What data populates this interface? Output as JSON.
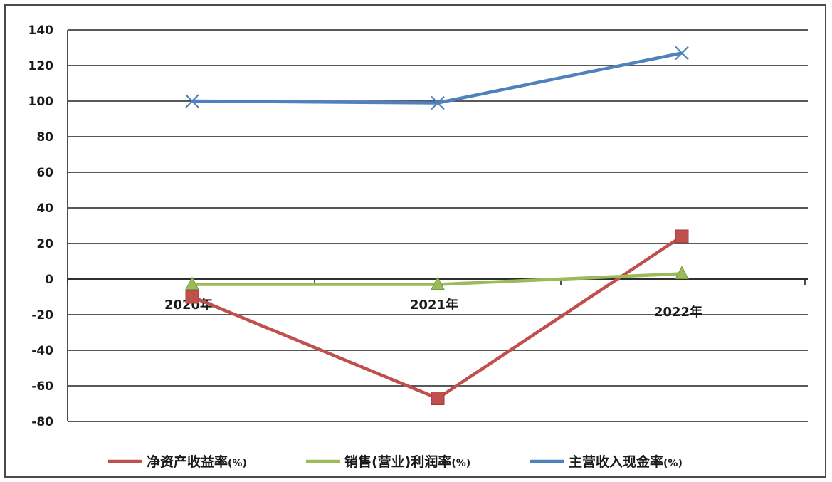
{
  "chart_data": {
    "type": "line",
    "title": "",
    "xlabel": "",
    "ylabel": "",
    "categories": [
      "2020年",
      "2021年",
      "2022年"
    ],
    "ylim": [
      -80,
      140
    ],
    "yticks": [
      140,
      120,
      100,
      80,
      60,
      40,
      20,
      0,
      -20,
      -40,
      -60,
      -80
    ],
    "grid": true,
    "legend_position": "bottom",
    "series": [
      {
        "name": "净资产收益率(%)",
        "values": [
          -10,
          -67,
          24
        ],
        "color": "#c0504d",
        "marker": "square"
      },
      {
        "name": "销售(营业)利润率(%)",
        "values": [
          -3,
          -3,
          3
        ],
        "color": "#9bbb59",
        "marker": "triangle"
      },
      {
        "name": "主营收入现金率(%)",
        "values": [
          100,
          99,
          127
        ],
        "color": "#4f81bd",
        "marker": "x"
      }
    ]
  }
}
